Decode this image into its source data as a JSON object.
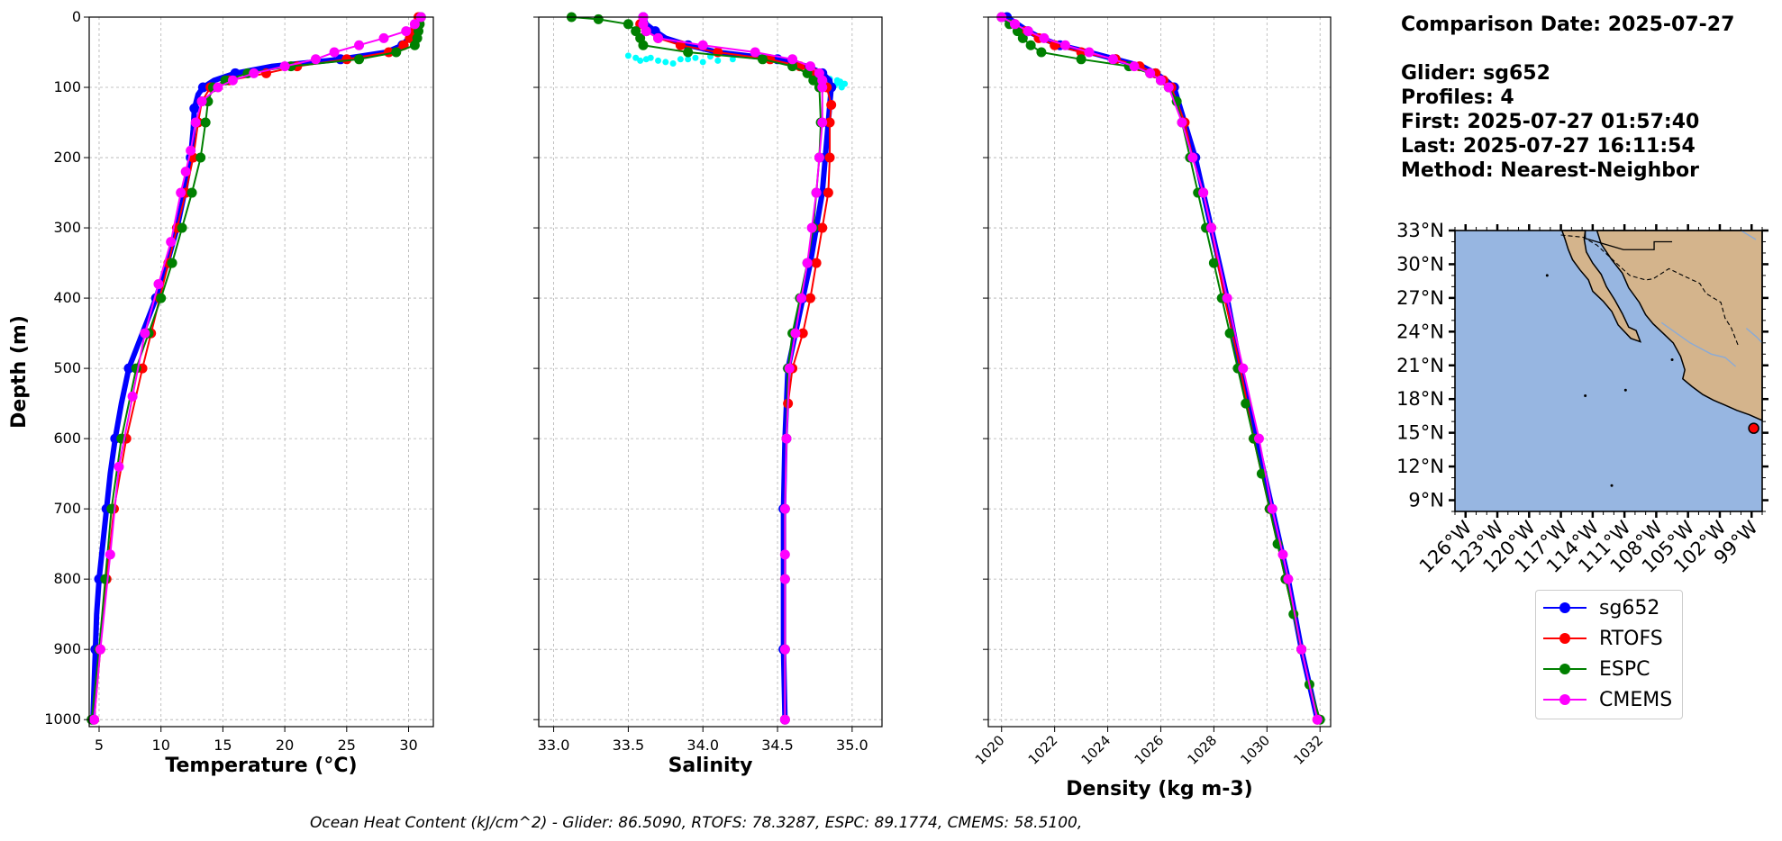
{
  "info": {
    "comparison_date": "Comparison Date: 2025-07-27",
    "glider": "Glider: sg652",
    "profiles": "Profiles: 4",
    "first": "First: 2025-07-27 01:57:40",
    "last": "Last: 2025-07-27 16:11:54",
    "method": "Method: Nearest-Neighbor"
  },
  "legend": [
    {
      "name": "sg652",
      "color": "#0000ff"
    },
    {
      "name": "RTOFS",
      "color": "#ff0000"
    },
    {
      "name": "ESPC",
      "color": "#008000"
    },
    {
      "name": "CMEMS",
      "color": "#ff00ff"
    }
  ],
  "footer_text": "Ocean Heat Content (kJ/cm^2) - Glider: 86.5090,  RTOFS: 78.3287,  ESPC: 89.1774,  CMEMS: 58.5100,",
  "colors": {
    "sg652": "#0000ff",
    "RTOFS": "#ff0000",
    "ESPC": "#008000",
    "CMEMS": "#ff00ff",
    "glider_raw": "#00ffff",
    "ocean": "#97b6e1",
    "land": "#d4b48c",
    "station": "#ff0000"
  },
  "chart_data": [
    {
      "type": "line",
      "id": "temperature",
      "xlabel": "Temperature (°C)",
      "ylabel": "Depth (m)",
      "xlim": [
        4.2,
        32
      ],
      "ylim": [
        1010,
        0
      ],
      "xticks": [
        5,
        10,
        15,
        20,
        25,
        30
      ],
      "yticks": [
        0,
        100,
        200,
        300,
        400,
        500,
        600,
        700,
        800,
        900,
        1000
      ],
      "grid": true,
      "series": [
        {
          "name": "sg652",
          "depth": [
            0,
            10,
            20,
            30,
            40,
            50,
            60,
            70,
            80,
            90,
            100,
            110,
            130,
            160,
            200,
            250,
            300,
            350,
            400,
            450,
            500,
            550,
            600,
            650,
            700,
            750,
            800,
            850,
            900,
            950,
            1000
          ],
          "values": [
            30.9,
            30.7,
            30.4,
            30.0,
            29.5,
            28.2,
            24.5,
            19.0,
            16.0,
            14.3,
            13.4,
            13.0,
            12.7,
            12.6,
            12.4,
            11.9,
            11.3,
            10.5,
            9.6,
            8.5,
            7.4,
            6.8,
            6.3,
            5.9,
            5.6,
            5.3,
            5.0,
            4.8,
            4.7,
            4.6,
            4.5
          ]
        },
        {
          "name": "RTOFS",
          "depth": [
            0,
            10,
            20,
            30,
            40,
            50,
            60,
            70,
            80,
            90,
            100,
            120,
            150,
            200,
            250,
            300,
            350,
            400,
            450,
            500,
            600,
            700,
            800,
            900,
            1000
          ],
          "values": [
            30.8,
            30.6,
            30.4,
            30.1,
            29.6,
            28.4,
            25.0,
            21.0,
            18.5,
            15.5,
            14.0,
            13.3,
            13.0,
            12.6,
            12.0,
            11.3,
            10.6,
            9.9,
            9.2,
            8.5,
            7.2,
            6.2,
            5.6,
            5.1,
            4.6
          ]
        },
        {
          "name": "ESPC",
          "depth": [
            0,
            10,
            20,
            30,
            40,
            50,
            60,
            70,
            80,
            90,
            100,
            120,
            150,
            200,
            250,
            300,
            350,
            400,
            450,
            500,
            600,
            700,
            800,
            900,
            1000
          ],
          "values": [
            31.0,
            30.9,
            30.8,
            30.7,
            30.5,
            29.0,
            26.0,
            20.5,
            17.0,
            15.2,
            14.2,
            13.8,
            13.6,
            13.2,
            12.5,
            11.7,
            10.9,
            10.0,
            9.0,
            8.0,
            6.8,
            6.0,
            5.5,
            5.0,
            4.4
          ]
        },
        {
          "name": "CMEMS",
          "depth": [
            0,
            10,
            20,
            30,
            40,
            50,
            60,
            70,
            80,
            90,
            100,
            120,
            150,
            190,
            220,
            250,
            320,
            380,
            450,
            540,
            640,
            765,
            900,
            1000
          ],
          "values": [
            31.0,
            30.5,
            29.8,
            28.0,
            26.0,
            24.0,
            22.5,
            20.0,
            17.5,
            15.8,
            14.6,
            13.3,
            12.8,
            12.4,
            12.0,
            11.6,
            10.8,
            9.8,
            8.7,
            7.7,
            6.6,
            5.9,
            5.1,
            4.6
          ]
        }
      ]
    },
    {
      "type": "line",
      "id": "salinity",
      "xlabel": "Salinity",
      "xlim": [
        32.9,
        35.2
      ],
      "ylim": [
        1010,
        0
      ],
      "xticks": [
        33.0,
        33.5,
        34.0,
        34.5,
        35.0
      ],
      "grid": true,
      "series": [
        {
          "name": "glider_raw",
          "depth": [
            55,
            58,
            60,
            62,
            64,
            66,
            60,
            58,
            56,
            62,
            64,
            60,
            58,
            62,
            60,
            88,
            90,
            92,
            95,
            100,
            98,
            94
          ],
          "values": [
            33.5,
            33.55,
            33.62,
            33.7,
            33.75,
            33.8,
            33.9,
            33.95,
            34.05,
            34.1,
            34.0,
            33.85,
            33.65,
            33.58,
            34.2,
            34.85,
            34.9,
            34.92,
            34.95,
            34.93,
            34.88,
            34.9
          ]
        },
        {
          "name": "sg652",
          "depth": [
            0,
            10,
            20,
            30,
            40,
            50,
            60,
            70,
            80,
            90,
            100,
            150,
            200,
            250,
            300,
            350,
            400,
            450,
            500,
            600,
            700,
            800,
            900,
            1000
          ],
          "values": [
            33.6,
            33.62,
            33.68,
            33.75,
            33.9,
            34.1,
            34.5,
            34.7,
            34.8,
            34.85,
            34.86,
            34.84,
            34.82,
            34.8,
            34.76,
            34.72,
            34.67,
            34.62,
            34.57,
            34.55,
            34.54,
            34.54,
            34.54,
            34.55
          ]
        },
        {
          "name": "RTOFS",
          "depth": [
            10,
            20,
            30,
            40,
            50,
            60,
            70,
            80,
            90,
            100,
            125,
            150,
            200,
            250,
            300,
            350,
            400,
            450,
            500,
            550
          ],
          "values": [
            33.58,
            33.62,
            33.7,
            33.85,
            34.1,
            34.45,
            34.65,
            34.75,
            34.8,
            34.83,
            34.86,
            34.85,
            34.85,
            34.84,
            34.8,
            34.76,
            34.72,
            34.67,
            34.6,
            34.57
          ]
        },
        {
          "name": "ESPC",
          "depth": [
            0,
            3,
            10,
            20,
            30,
            40,
            50,
            60,
            70,
            80,
            90,
            100,
            150,
            200,
            250,
            300,
            350,
            400,
            450,
            500,
            600,
            700,
            800,
            900,
            1000
          ],
          "values": [
            33.12,
            33.3,
            33.5,
            33.55,
            33.58,
            33.6,
            33.9,
            34.4,
            34.6,
            34.7,
            34.74,
            34.78,
            34.79,
            34.78,
            34.76,
            34.74,
            34.7,
            34.65,
            34.6,
            34.57,
            34.56,
            34.55,
            34.55,
            34.55,
            34.55
          ]
        },
        {
          "name": "CMEMS",
          "depth": [
            0,
            10,
            20,
            30,
            40,
            50,
            60,
            70,
            80,
            90,
            100,
            150,
            200,
            250,
            300,
            350,
            400,
            450,
            500,
            600,
            700,
            765,
            800,
            900,
            1000
          ],
          "values": [
            33.6,
            33.6,
            33.62,
            33.7,
            34.0,
            34.35,
            34.6,
            34.72,
            34.78,
            34.8,
            34.8,
            34.8,
            34.78,
            34.76,
            34.73,
            34.7,
            34.66,
            34.62,
            34.58,
            34.56,
            34.55,
            34.55,
            34.55,
            34.55,
            34.55
          ]
        }
      ]
    },
    {
      "type": "line",
      "id": "density",
      "xlabel": "Density (kg m-3)",
      "xlim": [
        1019.5,
        1032.4
      ],
      "ylim": [
        1010,
        0
      ],
      "xticks": [
        1020,
        1022,
        1024,
        1026,
        1028,
        1030,
        1032
      ],
      "grid": true,
      "series": [
        {
          "name": "sg652",
          "depth": [
            0,
            10,
            20,
            30,
            40,
            50,
            60,
            70,
            80,
            90,
            100,
            150,
            200,
            250,
            300,
            400,
            500,
            600,
            700,
            800,
            900,
            1000
          ],
          "values": [
            1020.2,
            1020.6,
            1021.0,
            1021.5,
            1022.2,
            1023.3,
            1024.3,
            1025.3,
            1025.8,
            1026.2,
            1026.5,
            1026.9,
            1027.3,
            1027.6,
            1027.9,
            1028.5,
            1029.0,
            1029.6,
            1030.2,
            1030.8,
            1031.3,
            1031.9
          ]
        },
        {
          "name": "RTOFS",
          "depth": [
            10,
            20,
            30,
            40,
            50,
            60,
            70,
            80,
            90,
            100,
            150,
            200,
            250,
            300,
            400,
            500,
            600,
            700,
            800,
            900,
            1000
          ],
          "values": [
            1020.5,
            1020.9,
            1021.4,
            1022.0,
            1023.0,
            1024.3,
            1025.2,
            1025.8,
            1026.1,
            1026.4,
            1026.9,
            1027.2,
            1027.6,
            1027.9,
            1028.4,
            1029.0,
            1029.5,
            1030.1,
            1030.7,
            1031.3,
            1031.9
          ]
        },
        {
          "name": "ESPC",
          "depth": [
            0,
            10,
            20,
            30,
            40,
            50,
            60,
            70,
            80,
            90,
            100,
            120,
            150,
            200,
            250,
            300,
            350,
            400,
            450,
            500,
            550,
            600,
            650,
            700,
            750,
            800,
            850,
            900,
            950,
            1000
          ],
          "values": [
            1020.0,
            1020.3,
            1020.6,
            1020.8,
            1021.1,
            1021.5,
            1023.0,
            1024.8,
            1025.6,
            1026.0,
            1026.3,
            1026.6,
            1026.8,
            1027.1,
            1027.4,
            1027.7,
            1028.0,
            1028.3,
            1028.6,
            1028.9,
            1029.2,
            1029.5,
            1029.8,
            1030.1,
            1030.4,
            1030.7,
            1031.0,
            1031.3,
            1031.6,
            1032.0
          ]
        },
        {
          "name": "CMEMS",
          "depth": [
            0,
            10,
            20,
            30,
            40,
            50,
            60,
            70,
            80,
            90,
            100,
            150,
            200,
            250,
            300,
            400,
            500,
            600,
            700,
            765,
            800,
            900,
            1000
          ],
          "values": [
            1020.0,
            1020.5,
            1021.0,
            1021.6,
            1022.4,
            1023.3,
            1024.2,
            1025.0,
            1025.6,
            1026.0,
            1026.3,
            1026.8,
            1027.2,
            1027.6,
            1027.9,
            1028.5,
            1029.1,
            1029.7,
            1030.2,
            1030.6,
            1030.8,
            1031.3,
            1031.9
          ]
        }
      ]
    },
    {
      "type": "map",
      "id": "map",
      "lat_range": [
        8,
        33
      ],
      "lon_range": [
        -127,
        -98
      ],
      "lat_ticks": [
        "33°N",
        "30°N",
        "27°N",
        "24°N",
        "21°N",
        "18°N",
        "15°N",
        "12°N",
        "9°N"
      ],
      "lat_tick_values": [
        33,
        30,
        27,
        24,
        21,
        18,
        15,
        12,
        9
      ],
      "lon_ticks": [
        "126°W",
        "123°W",
        "120°W",
        "117°W",
        "114°W",
        "111°W",
        "108°W",
        "105°W",
        "102°W",
        "99°W"
      ],
      "lon_tick_values": [
        -126,
        -123,
        -120,
        -117,
        -114,
        -111,
        -108,
        -105,
        -102,
        -99
      ],
      "station": {
        "lon": -98.8,
        "lat": 15.4
      }
    }
  ]
}
